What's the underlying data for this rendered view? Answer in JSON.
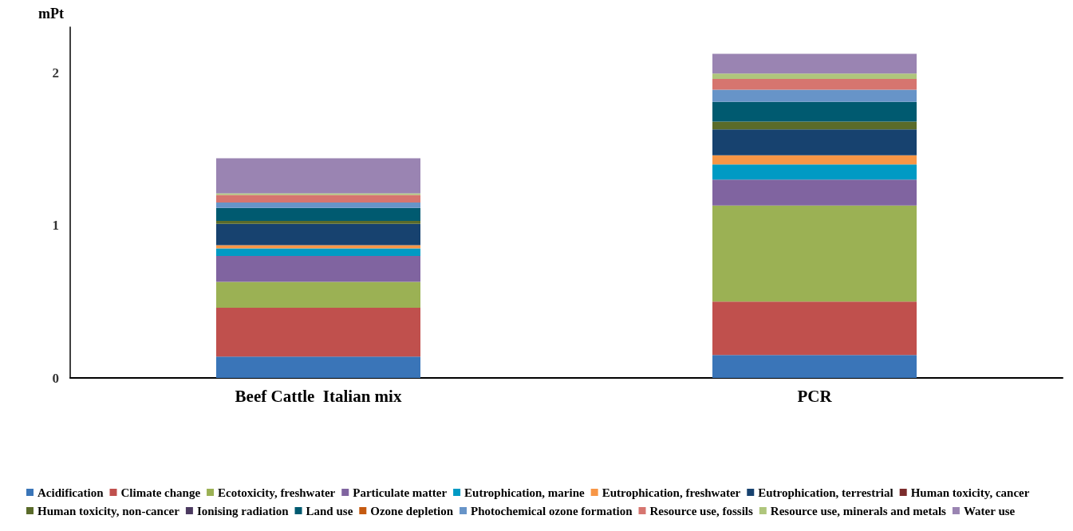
{
  "chart_data": {
    "type": "bar",
    "stacked": true,
    "ylabel": "mPt",
    "categories": [
      "Beef Cattle  Italian mix",
      "PCR"
    ],
    "ylim": [
      0,
      2.3
    ],
    "yticks": [
      0,
      1,
      2
    ],
    "grid": false,
    "legend": "bottom",
    "series": [
      {
        "name": "Acidification",
        "color": "#3a75b8",
        "values": [
          0.14,
          0.15
        ]
      },
      {
        "name": "Climate change",
        "color": "#c0504d",
        "values": [
          0.32,
          0.35
        ]
      },
      {
        "name": "Ecotoxicity, freshwater",
        "color": "#9bb154",
        "values": [
          0.17,
          0.63
        ]
      },
      {
        "name": "Particulate matter",
        "color": "#8064a0",
        "values": [
          0.17,
          0.17
        ]
      },
      {
        "name": "Eutrophication, marine",
        "color": "#009ac4",
        "values": [
          0.05,
          0.1
        ]
      },
      {
        "name": "Eutrophication, freshwater",
        "color": "#f79646",
        "values": [
          0.02,
          0.06
        ]
      },
      {
        "name": "Eutrophication, terrestrial",
        "color": "#17426f",
        "values": [
          0.14,
          0.17
        ]
      },
      {
        "name": "Human toxicity, cancer",
        "color": "#7b2c2c",
        "values": [
          0,
          0
        ]
      },
      {
        "name": "Human toxicity, non-cancer",
        "color": "#5a6b2a",
        "values": [
          0.02,
          0.05
        ]
      },
      {
        "name": "Ionising radiation",
        "color": "#4b3a60",
        "values": [
          0,
          0
        ]
      },
      {
        "name": "Land use",
        "color": "#005a70",
        "values": [
          0.085,
          0.13
        ]
      },
      {
        "name": "Ozone depletion",
        "color": "#c55a11",
        "values": [
          0,
          0
        ]
      },
      {
        "name": "Photochemical ozone formation",
        "color": "#6794c8",
        "values": [
          0.035,
          0.08
        ]
      },
      {
        "name": "Resource use, fossils",
        "color": "#d6756f",
        "values": [
          0.05,
          0.07
        ]
      },
      {
        "name": "Resource use, minerals and metals",
        "color": "#afc67c",
        "values": [
          0.01,
          0.035
        ]
      },
      {
        "name": "Water use",
        "color": "#9a84b2",
        "values": [
          0.23,
          0.13
        ]
      }
    ]
  }
}
